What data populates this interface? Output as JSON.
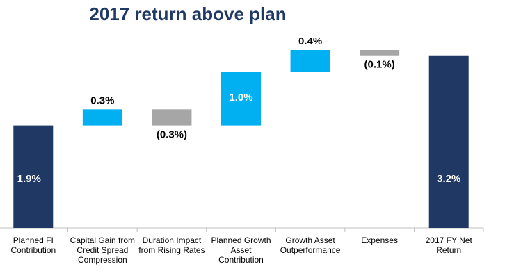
{
  "chart_data": {
    "type": "waterfall",
    "title": "2017 return above plan",
    "categories": [
      "Planned FI Contribution",
      "Capital Gain from Credit Spread Compression",
      "Duration Impact from Rising Rates",
      "Planned Growth Asset Contribution",
      "Growth Asset Outperformance",
      "Expenses",
      "2017 FY Net Return"
    ],
    "values": [
      1.9,
      0.3,
      -0.3,
      1.0,
      0.4,
      -0.1,
      3.2
    ],
    "value_labels": [
      "1.9%",
      "0.3%",
      "(0.3%)",
      "1.0%",
      "0.4%",
      "(0.1%)",
      "3.2%"
    ],
    "measure": [
      "absolute",
      "relative",
      "relative",
      "relative",
      "relative",
      "relative",
      "absolute"
    ],
    "colors": [
      "#1f3864",
      "#00b0f0",
      "#a6a6a6",
      "#00b0f0",
      "#00b0f0",
      "#a6a6a6",
      "#1f3864"
    ],
    "ylim": [
      0,
      3.3
    ]
  }
}
